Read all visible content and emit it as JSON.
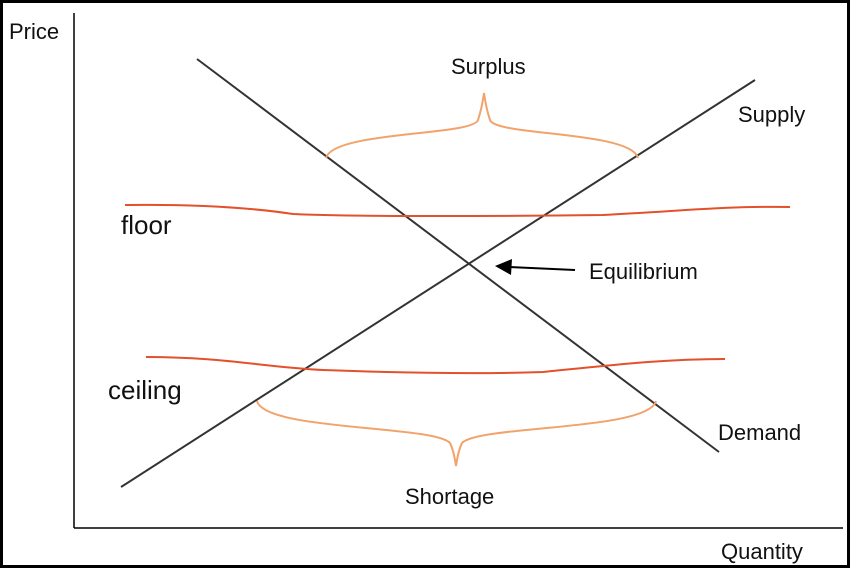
{
  "axes": {
    "y_label": "Price",
    "x_label": "Quantity"
  },
  "curves": {
    "supply_label": "Supply",
    "demand_label": "Demand"
  },
  "annotations": {
    "surplus_label": "Surplus",
    "shortage_label": "Shortage",
    "equilibrium_label": "Equilibrium",
    "floor_label": "floor",
    "ceiling_label": "ceiling"
  },
  "colors": {
    "curve": "#333333",
    "price_control": "#e3512b",
    "brace": "#f2a36b",
    "axis": "#000000"
  }
}
